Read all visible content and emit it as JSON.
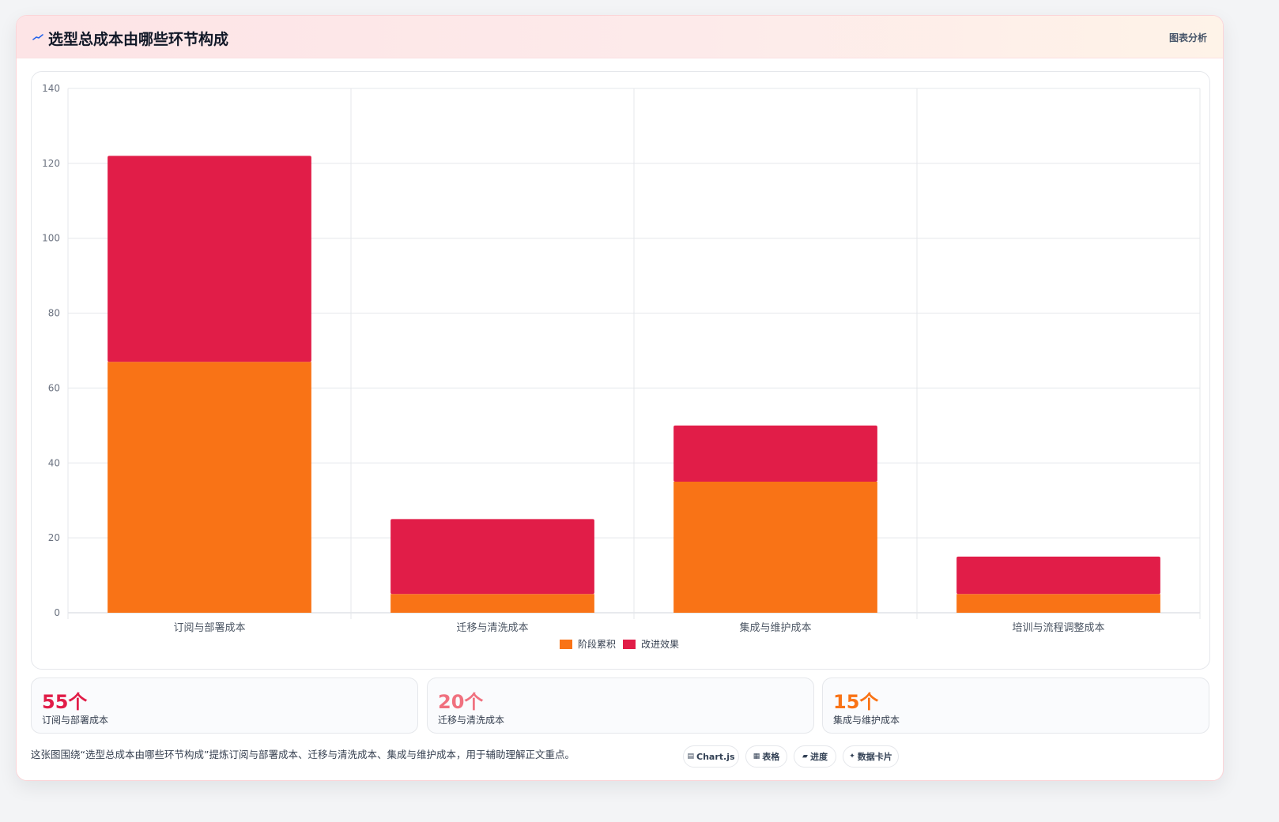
{
  "header": {
    "title": "选型总成本由哪些环节构成",
    "right_label": "图表分析",
    "icon": "trend-line-icon"
  },
  "chart_data": {
    "type": "bar",
    "stacked": true,
    "categories": [
      "订阅与部署成本",
      "迁移与清洗成本",
      "集成与维护成本",
      "培训与流程调整成本"
    ],
    "series": [
      {
        "name": "阶段累积",
        "values": [
          67,
          5,
          35,
          5
        ],
        "color": "#f97316"
      },
      {
        "name": "改进效果",
        "values": [
          55,
          20,
          15,
          10
        ],
        "color": "#e11d48"
      }
    ],
    "yticks": [
      0,
      20,
      40,
      60,
      80,
      100,
      120,
      140
    ],
    "ylim": [
      0,
      140
    ],
    "grid": true,
    "legend_position": "bottom"
  },
  "stats": [
    {
      "value": "55个",
      "label": "订阅与部署成本",
      "color": "#e11d48"
    },
    {
      "value": "20个",
      "label": "迁移与清洗成本",
      "color": "#f0717f"
    },
    {
      "value": "15个",
      "label": "集成与维护成本",
      "color": "#f97316"
    }
  ],
  "footer": {
    "description": "这张图围绕“选型总成本由哪些环节构成”提炼订阅与部署成本、迁移与清洗成本、集成与维护成本，用于辅助理解正文重点。",
    "tags": [
      {
        "icon": "chart-icon",
        "label": "Chart.js"
      },
      {
        "icon": "table-icon",
        "label": "表格"
      },
      {
        "icon": "progress-icon",
        "label": "进度"
      },
      {
        "icon": "sparkle-icon",
        "label": "数据卡片"
      }
    ]
  }
}
